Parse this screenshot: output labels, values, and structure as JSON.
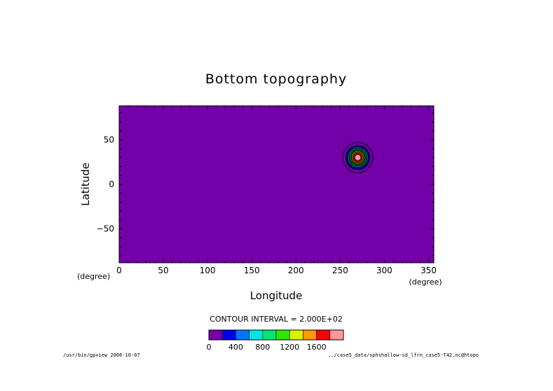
{
  "chart_data": {
    "type": "heatmap",
    "title": "Bottom topography",
    "xlabel": "Longitude",
    "ylabel": "Latitude",
    "x_unit": "(degree)",
    "y_unit": "(degree)",
    "xlim": [
      0,
      356
    ],
    "ylim": [
      -88,
      88
    ],
    "xticks": [
      0,
      50,
      100,
      150,
      200,
      250,
      300,
      350
    ],
    "yticks": [
      50,
      0,
      -50
    ],
    "ytick_labels": [
      "50",
      "0",
      "−50"
    ],
    "feature": {
      "center_lon": 270,
      "center_lat": 30,
      "radius_deg": 17,
      "peak": 2000,
      "levels": [
        0,
        200,
        400,
        600,
        800,
        1000,
        1200,
        1400,
        1600,
        1800,
        2000
      ]
    },
    "contour_interval": "CONTOUR INTERVAL = 2.000E+02",
    "colorbar": {
      "colors": [
        "#7300a8",
        "#0000e6",
        "#0073ff",
        "#00e6e6",
        "#00e673",
        "#2ee600",
        "#d9f200",
        "#ff9900",
        "#ff0000",
        "#ff9999"
      ],
      "labels": [
        "0",
        "400",
        "800",
        "1200",
        "1600"
      ],
      "label_values": [
        0,
        400,
        800,
        1200,
        1600
      ],
      "max": 2000
    }
  },
  "footer": {
    "left": "/usr/bin/gpview  2006-10-07",
    "right": "../case5_data/sphshallow-sd_lfrn_case5-T42.nc@htopo"
  }
}
